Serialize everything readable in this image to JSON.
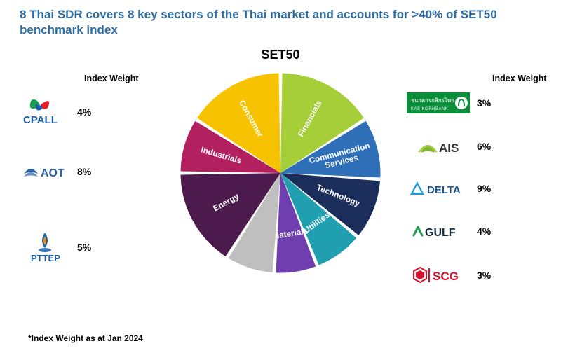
{
  "title": {
    "text": "8 Thai SDR covers 8 key sectors of the Thai market and accounts for >40% of SET50 benchmark index",
    "color": "#2e6da4"
  },
  "chart": {
    "title": "SET50",
    "title_fontsize": 18,
    "type": "pie",
    "radius": 151,
    "start_angle_deg": -90,
    "gap_deg": 2,
    "slices": [
      {
        "label": "Financials",
        "value": 16,
        "color": "#a6ce39",
        "label_color": "#ffffff"
      },
      {
        "label": "Communication Services",
        "value": 10,
        "color": "#2f6fb7",
        "label_color": "#ffffff",
        "two_line": true
      },
      {
        "label": "Technology",
        "value": 10,
        "color": "#1b2d5b",
        "label_color": "#ffffff"
      },
      {
        "label": "Utilities",
        "value": 8,
        "color": "#1f9fb0",
        "label_color": "#ffffff",
        "rotate": true
      },
      {
        "label": "Materials",
        "value": 7,
        "color": "#6f3fb0",
        "label_color": "#ffffff",
        "rotate": true
      },
      {
        "label": "",
        "value": 8,
        "color": "#bfbfbf",
        "label_color": "#ffffff"
      },
      {
        "label": "Energy",
        "value": 16,
        "color": "#4d1a4d",
        "label_color": "#ffffff"
      },
      {
        "label": "Industrials",
        "value": 9,
        "color": "#b22060",
        "label_color": "#ffffff"
      },
      {
        "label": "Consumer",
        "value": 16,
        "color": "#f7c200",
        "label_color": "#ffffff"
      }
    ]
  },
  "left_header": "Index Weight",
  "right_header": "Index Weight",
  "left": [
    {
      "name": "CPALL",
      "weight": "4%",
      "logo": "cpall"
    },
    {
      "name": "AOT",
      "weight": "8%",
      "logo": "aot"
    },
    {
      "name": "PTTEP",
      "weight": "5%",
      "logo": "pttep"
    }
  ],
  "right": [
    {
      "name": "KBANK",
      "weight": "3%",
      "logo": "kbank"
    },
    {
      "name": "AIS",
      "weight": "6%",
      "logo": "ais"
    },
    {
      "name": "DELTA",
      "weight": "9%",
      "logo": "delta"
    },
    {
      "name": "GULF",
      "weight": "4%",
      "logo": "gulf"
    },
    {
      "name": "SCG",
      "weight": "3%",
      "logo": "scg"
    }
  ],
  "footnote": "*Index Weight as at Jan 2024",
  "logo_defs": {
    "cpall": {
      "primary": "#1a5eab",
      "accent1": "#1aa050",
      "accent2": "#e52028",
      "text": "CPALL"
    },
    "aot": {
      "primary": "#2e63a6",
      "text": "AOT"
    },
    "pttep": {
      "primary": "#1a5eab",
      "flame": "#f28c00",
      "text": "PTTEP"
    },
    "kbank": {
      "bg": "#0b8f3a",
      "text_color": "#ffffff",
      "thai": "ธนาคารกสิกรไทย"
    },
    "ais": {
      "primary": "#333333",
      "accent": "#9ecb3a",
      "text": "AIS"
    },
    "delta": {
      "primary": "#1a99d6",
      "text": "DELTA",
      "text_color": "#1a5491"
    },
    "gulf": {
      "primary": "#0f2a3f",
      "accent": "#1aa050",
      "text": "GULF"
    },
    "scg": {
      "primary": "#d7102b",
      "text": "SCG"
    }
  }
}
